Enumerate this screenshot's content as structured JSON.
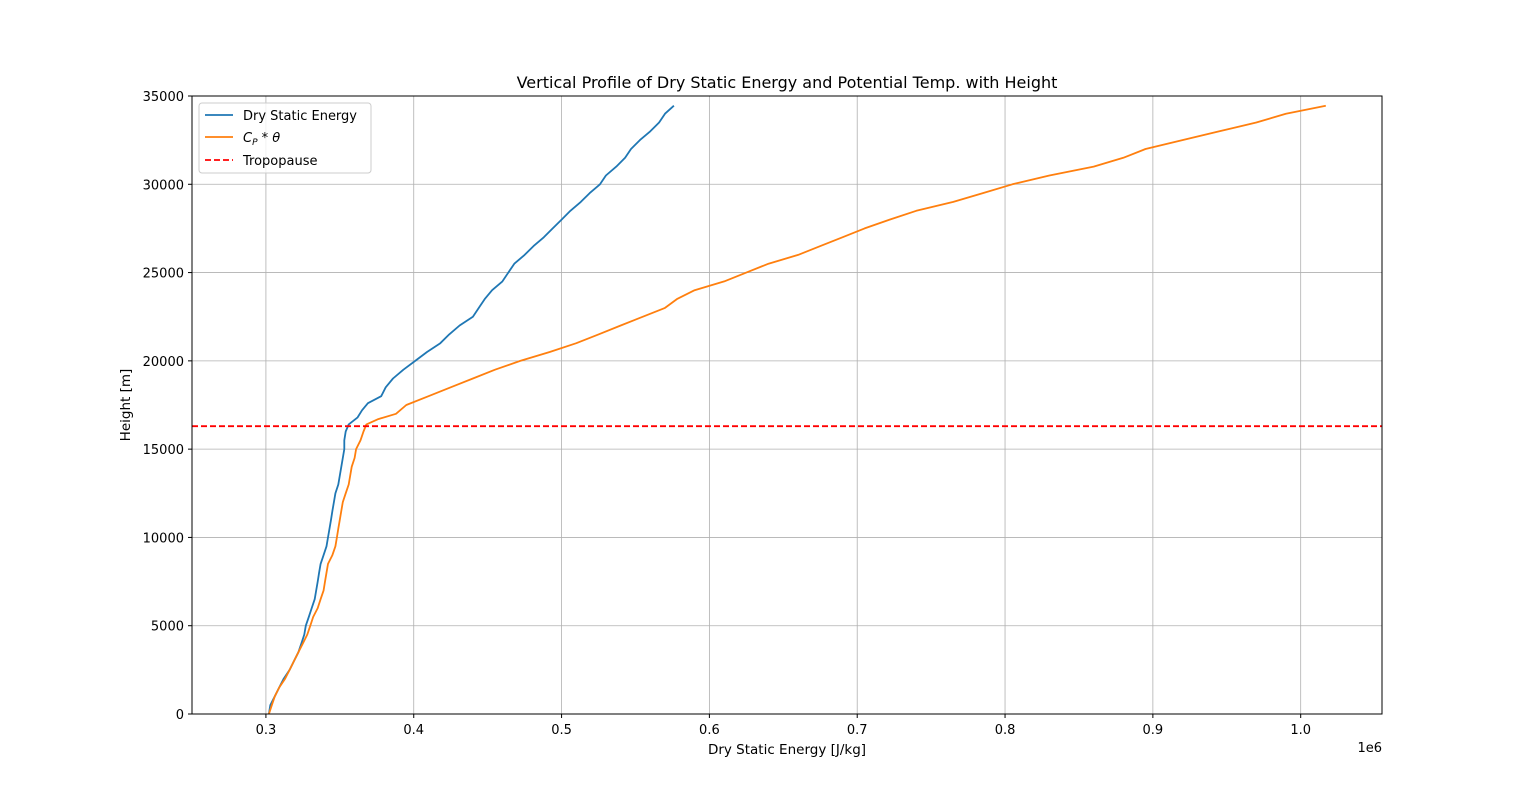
{
  "chart_data": {
    "type": "line",
    "title": "Vertical Profile of Dry Static Energy and Potential Temp. with Height",
    "xlabel": "Dry Static Energy [J/kg]",
    "ylabel": "Height [m]",
    "x_offset_label": "1e6",
    "xlim": [
      0.25,
      1.055
    ],
    "ylim": [
      0,
      35000
    ],
    "xticks": [
      0.3,
      0.4,
      0.5,
      0.6,
      0.7,
      0.8,
      0.9,
      1.0
    ],
    "xtick_labels": [
      "0.3",
      "0.4",
      "0.5",
      "0.6",
      "0.7",
      "0.8",
      "0.9",
      "1.0"
    ],
    "yticks": [
      0,
      5000,
      10000,
      15000,
      20000,
      25000,
      30000,
      35000
    ],
    "ytick_labels": [
      "0",
      "5000",
      "10000",
      "15000",
      "20000",
      "25000",
      "30000",
      "35000"
    ],
    "grid": true,
    "legend_position": "top-left",
    "series": [
      {
        "name": "Dry Static Energy",
        "color": "#1f77b4",
        "style": "solid",
        "points": [
          [
            0.302,
            0
          ],
          [
            0.303,
            500
          ],
          [
            0.306,
            1000
          ],
          [
            0.309,
            1500
          ],
          [
            0.312,
            2000
          ],
          [
            0.316,
            2500
          ],
          [
            0.319,
            3000
          ],
          [
            0.322,
            3500
          ],
          [
            0.324,
            4000
          ],
          [
            0.326,
            4500
          ],
          [
            0.327,
            5000
          ],
          [
            0.329,
            5500
          ],
          [
            0.331,
            6000
          ],
          [
            0.333,
            6500
          ],
          [
            0.334,
            7000
          ],
          [
            0.335,
            7500
          ],
          [
            0.336,
            8000
          ],
          [
            0.337,
            8500
          ],
          [
            0.339,
            9000
          ],
          [
            0.341,
            9500
          ],
          [
            0.342,
            10000
          ],
          [
            0.343,
            10500
          ],
          [
            0.344,
            11000
          ],
          [
            0.345,
            11500
          ],
          [
            0.346,
            12000
          ],
          [
            0.347,
            12500
          ],
          [
            0.349,
            13000
          ],
          [
            0.35,
            13500
          ],
          [
            0.351,
            14000
          ],
          [
            0.352,
            14500
          ],
          [
            0.353,
            15000
          ],
          [
            0.353,
            15500
          ],
          [
            0.354,
            16000
          ],
          [
            0.356,
            16400
          ],
          [
            0.362,
            16800
          ],
          [
            0.365,
            17200
          ],
          [
            0.369,
            17600
          ],
          [
            0.378,
            18000
          ],
          [
            0.381,
            18500
          ],
          [
            0.386,
            19000
          ],
          [
            0.393,
            19500
          ],
          [
            0.401,
            20000
          ],
          [
            0.409,
            20500
          ],
          [
            0.418,
            21000
          ],
          [
            0.424,
            21500
          ],
          [
            0.431,
            22000
          ],
          [
            0.44,
            22500
          ],
          [
            0.444,
            23000
          ],
          [
            0.448,
            23500
          ],
          [
            0.453,
            24000
          ],
          [
            0.46,
            24500
          ],
          [
            0.464,
            25000
          ],
          [
            0.468,
            25500
          ],
          [
            0.475,
            26000
          ],
          [
            0.481,
            26500
          ],
          [
            0.488,
            27000
          ],
          [
            0.494,
            27500
          ],
          [
            0.5,
            28000
          ],
          [
            0.506,
            28500
          ],
          [
            0.513,
            29000
          ],
          [
            0.519,
            29500
          ],
          [
            0.526,
            30000
          ],
          [
            0.53,
            30500
          ],
          [
            0.537,
            31000
          ],
          [
            0.543,
            31500
          ],
          [
            0.547,
            32000
          ],
          [
            0.553,
            32500
          ],
          [
            0.56,
            33000
          ],
          [
            0.566,
            33500
          ],
          [
            0.57,
            34000
          ],
          [
            0.576,
            34450
          ]
        ]
      },
      {
        "name": "C_P*θ",
        "color": "#ff7f0e",
        "style": "solid",
        "points": [
          [
            0.302,
            0
          ],
          [
            0.304,
            500
          ],
          [
            0.306,
            1000
          ],
          [
            0.309,
            1500
          ],
          [
            0.313,
            2000
          ],
          [
            0.316,
            2500
          ],
          [
            0.319,
            3000
          ],
          [
            0.322,
            3500
          ],
          [
            0.325,
            4000
          ],
          [
            0.328,
            4500
          ],
          [
            0.33,
            5000
          ],
          [
            0.332,
            5500
          ],
          [
            0.335,
            6000
          ],
          [
            0.337,
            6500
          ],
          [
            0.339,
            7000
          ],
          [
            0.34,
            7500
          ],
          [
            0.341,
            8000
          ],
          [
            0.342,
            8500
          ],
          [
            0.345,
            9000
          ],
          [
            0.347,
            9500
          ],
          [
            0.348,
            10000
          ],
          [
            0.349,
            10500
          ],
          [
            0.35,
            11000
          ],
          [
            0.351,
            11500
          ],
          [
            0.352,
            12000
          ],
          [
            0.354,
            12500
          ],
          [
            0.356,
            13000
          ],
          [
            0.357,
            13500
          ],
          [
            0.358,
            14000
          ],
          [
            0.36,
            14500
          ],
          [
            0.361,
            15000
          ],
          [
            0.364,
            15500
          ],
          [
            0.366,
            16000
          ],
          [
            0.368,
            16400
          ],
          [
            0.376,
            16700
          ],
          [
            0.388,
            17000
          ],
          [
            0.395,
            17500
          ],
          [
            0.41,
            18000
          ],
          [
            0.425,
            18500
          ],
          [
            0.44,
            19000
          ],
          [
            0.455,
            19500
          ],
          [
            0.472,
            20000
          ],
          [
            0.492,
            20500
          ],
          [
            0.51,
            21000
          ],
          [
            0.525,
            21500
          ],
          [
            0.54,
            22000
          ],
          [
            0.555,
            22500
          ],
          [
            0.57,
            23000
          ],
          [
            0.578,
            23500
          ],
          [
            0.59,
            24000
          ],
          [
            0.61,
            24500
          ],
          [
            0.625,
            25000
          ],
          [
            0.64,
            25500
          ],
          [
            0.66,
            26000
          ],
          [
            0.675,
            26500
          ],
          [
            0.69,
            27000
          ],
          [
            0.705,
            27500
          ],
          [
            0.722,
            28000
          ],
          [
            0.74,
            28500
          ],
          [
            0.765,
            29000
          ],
          [
            0.785,
            29500
          ],
          [
            0.805,
            30000
          ],
          [
            0.83,
            30500
          ],
          [
            0.86,
            31000
          ],
          [
            0.88,
            31500
          ],
          [
            0.895,
            32000
          ],
          [
            0.92,
            32500
          ],
          [
            0.945,
            33000
          ],
          [
            0.97,
            33500
          ],
          [
            0.99,
            34000
          ],
          [
            1.017,
            34450
          ]
        ]
      },
      {
        "name": "Tropopause",
        "color": "#ff0000",
        "style": "dashed",
        "hline": 16300
      }
    ]
  }
}
